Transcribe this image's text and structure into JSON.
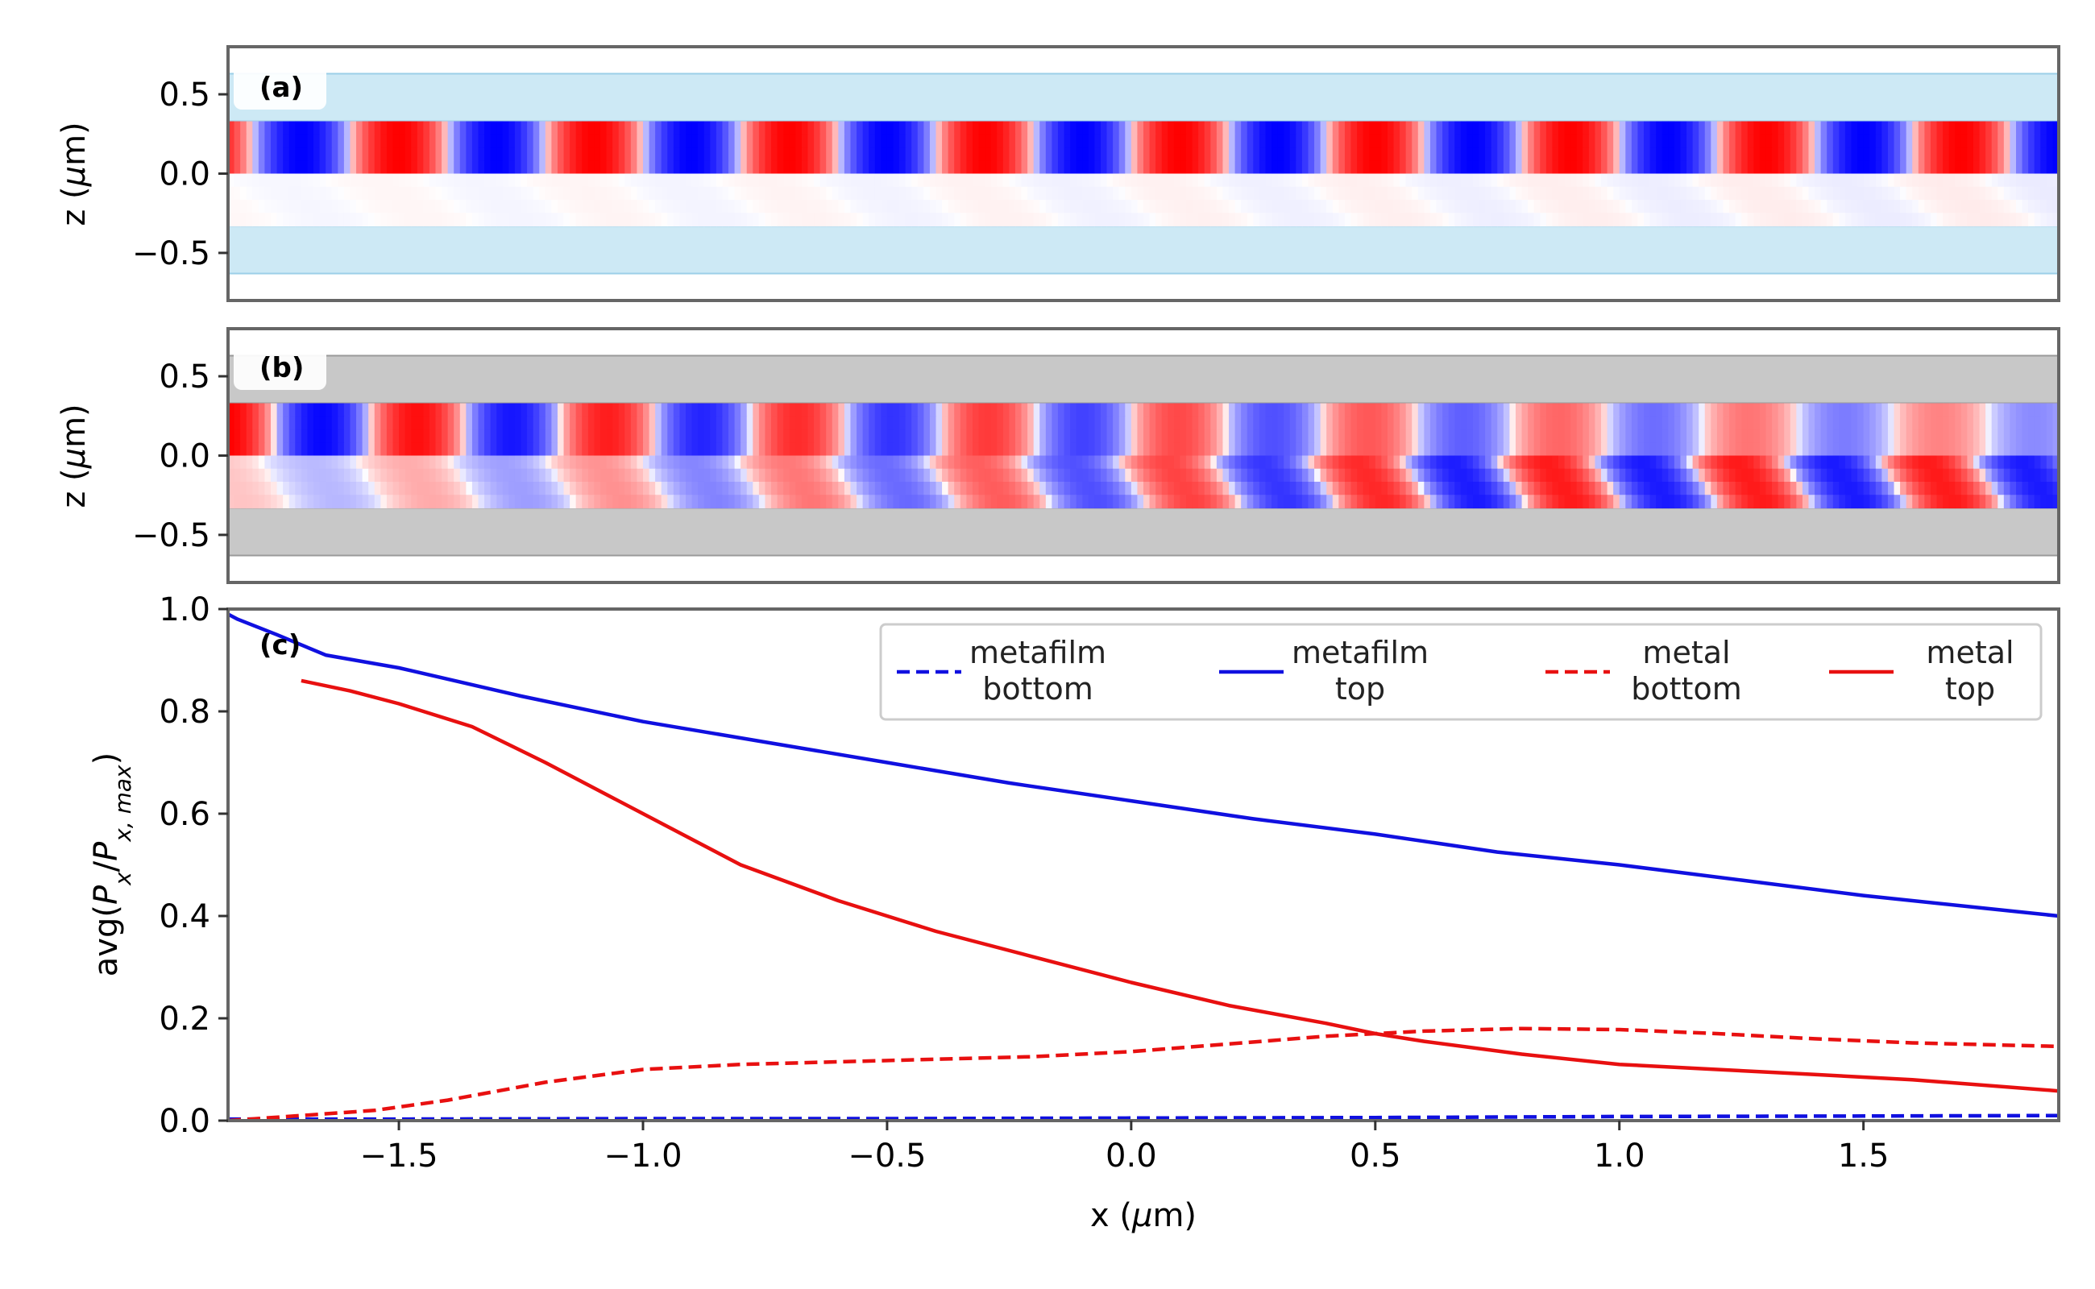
{
  "chart_data": [
    {
      "panel": "(a)",
      "type": "heatmap",
      "ylabel_prefix": "z (",
      "ylabel_unit_sym": "μ",
      "ylabel_suffix": "m)",
      "xlim": [
        -1.85,
        1.9
      ],
      "ylim": [
        -0.8,
        0.8
      ],
      "yticks": [
        0.5,
        0.0,
        -0.5
      ],
      "ytick_labels": [
        "0.5",
        "0.0",
        "−0.5"
      ],
      "layers": [
        {
          "name": "top cladding",
          "z_range": [
            0.33,
            0.63
          ],
          "color": "#cde9f5"
        },
        {
          "name": "bottom cladding",
          "z_range": [
            -0.63,
            -0.33
          ],
          "color": "#cde9f5"
        }
      ],
      "field": {
        "colormap": "bwr",
        "top_guide": {
          "z_range": [
            0.0,
            0.33
          ],
          "period_um": 0.4,
          "amplitude": 1.0,
          "decay": 0.0
        },
        "bottom_guide": {
          "z_range": [
            -0.33,
            0.0
          ],
          "period_um": 0.4,
          "amplitude": 0.08
        }
      }
    },
    {
      "panel": "(b)",
      "type": "heatmap",
      "ylabel_prefix": "z (",
      "ylabel_unit_sym": "μ",
      "ylabel_suffix": "m)",
      "xlim": [
        -1.85,
        1.9
      ],
      "ylim": [
        -0.8,
        0.8
      ],
      "yticks": [
        0.5,
        0.0,
        -0.5
      ],
      "ytick_labels": [
        "0.5",
        "0.0",
        "−0.5"
      ],
      "layers": [
        {
          "name": "top metal",
          "z_range": [
            0.33,
            0.63
          ],
          "color": "#c8c8c8"
        },
        {
          "name": "bottom metal",
          "z_range": [
            -0.63,
            -0.33
          ],
          "color": "#c8c8c8"
        }
      ],
      "field": {
        "colormap": "bwr",
        "top_guide": {
          "z_range": [
            0.0,
            0.33
          ],
          "period_um": 0.39,
          "amplitude": 1.0,
          "decay": 0.55
        },
        "bottom_guide": {
          "z_range": [
            -0.33,
            0.0
          ],
          "period_um": 0.39,
          "amplitude": 0.9
        }
      }
    },
    {
      "panel": "(c)",
      "type": "line",
      "xlabel_prefix": "x (",
      "xlabel_unit_sym": "μ",
      "xlabel_suffix": "m)",
      "ylabel_prefix": "avg(",
      "ylabel_P": "P",
      "ylabel_x": "x",
      "ylabel_slash": "/",
      "ylabel_xmax": "x, max",
      "ylabel_close": ")",
      "xlim": [
        -1.85,
        1.9
      ],
      "ylim": [
        0.0,
        1.0
      ],
      "xticks": [
        -1.5,
        -1.0,
        -0.5,
        0.0,
        0.5,
        1.0,
        1.5
      ],
      "xtick_labels": [
        "−1.5",
        "−1.0",
        "−0.5",
        "0.0",
        "0.5",
        "1.0",
        "1.5"
      ],
      "yticks": [
        0.0,
        0.2,
        0.4,
        0.6,
        0.8,
        1.0
      ],
      "ytick_labels": [
        "0.0",
        "0.2",
        "0.4",
        "0.6",
        "0.8",
        "1.0"
      ],
      "legend_position": "top-right",
      "series": [
        {
          "key": "metafilm_bottom",
          "name_line1": "metafilm",
          "name_line2": "bottom",
          "color": "#1010e0",
          "dash": true,
          "x": [
            -1.85,
            -1.5,
            -1.0,
            -0.5,
            0.0,
            0.5,
            1.0,
            1.5,
            1.9
          ],
          "y": [
            0.003,
            0.003,
            0.004,
            0.004,
            0.005,
            0.006,
            0.008,
            0.009,
            0.01
          ]
        },
        {
          "key": "metafilm_top",
          "name_line1": "metafilm",
          "name_line2": "top",
          "color": "#1010e0",
          "dash": false,
          "x": [
            -1.85,
            -1.83,
            -1.75,
            -1.65,
            -1.5,
            -1.25,
            -1.0,
            -0.75,
            -0.5,
            -0.25,
            0.0,
            0.25,
            0.5,
            0.75,
            1.0,
            1.25,
            1.5,
            1.75,
            1.9
          ],
          "y": [
            0.99,
            0.98,
            0.95,
            0.91,
            0.885,
            0.83,
            0.78,
            0.74,
            0.7,
            0.66,
            0.625,
            0.59,
            0.56,
            0.525,
            0.5,
            0.47,
            0.44,
            0.415,
            0.4
          ]
        },
        {
          "key": "metal_bottom",
          "name_line1": "metal",
          "name_line2": "bottom",
          "color": "#e81010",
          "dash": true,
          "x": [
            -1.85,
            -1.7,
            -1.55,
            -1.4,
            -1.2,
            -1.0,
            -0.8,
            -0.6,
            -0.4,
            -0.2,
            0.0,
            0.2,
            0.4,
            0.6,
            0.8,
            1.0,
            1.2,
            1.4,
            1.6,
            1.9
          ],
          "y": [
            0.0,
            0.01,
            0.02,
            0.04,
            0.075,
            0.1,
            0.11,
            0.115,
            0.12,
            0.125,
            0.135,
            0.15,
            0.165,
            0.175,
            0.18,
            0.178,
            0.17,
            0.16,
            0.152,
            0.145
          ]
        },
        {
          "key": "metal_top",
          "name_line1": "metal",
          "name_line2": "top",
          "color": "#e81010",
          "dash": false,
          "x": [
            -1.7,
            -1.6,
            -1.5,
            -1.35,
            -1.2,
            -1.0,
            -0.8,
            -0.6,
            -0.4,
            -0.2,
            0.0,
            0.2,
            0.4,
            0.5,
            0.6,
            0.8,
            1.0,
            1.2,
            1.4,
            1.6,
            1.9
          ],
          "y": [
            0.86,
            0.84,
            0.815,
            0.77,
            0.7,
            0.6,
            0.5,
            0.43,
            0.37,
            0.32,
            0.27,
            0.225,
            0.19,
            0.17,
            0.155,
            0.13,
            0.11,
            0.1,
            0.09,
            0.08,
            0.058
          ]
        }
      ]
    }
  ]
}
